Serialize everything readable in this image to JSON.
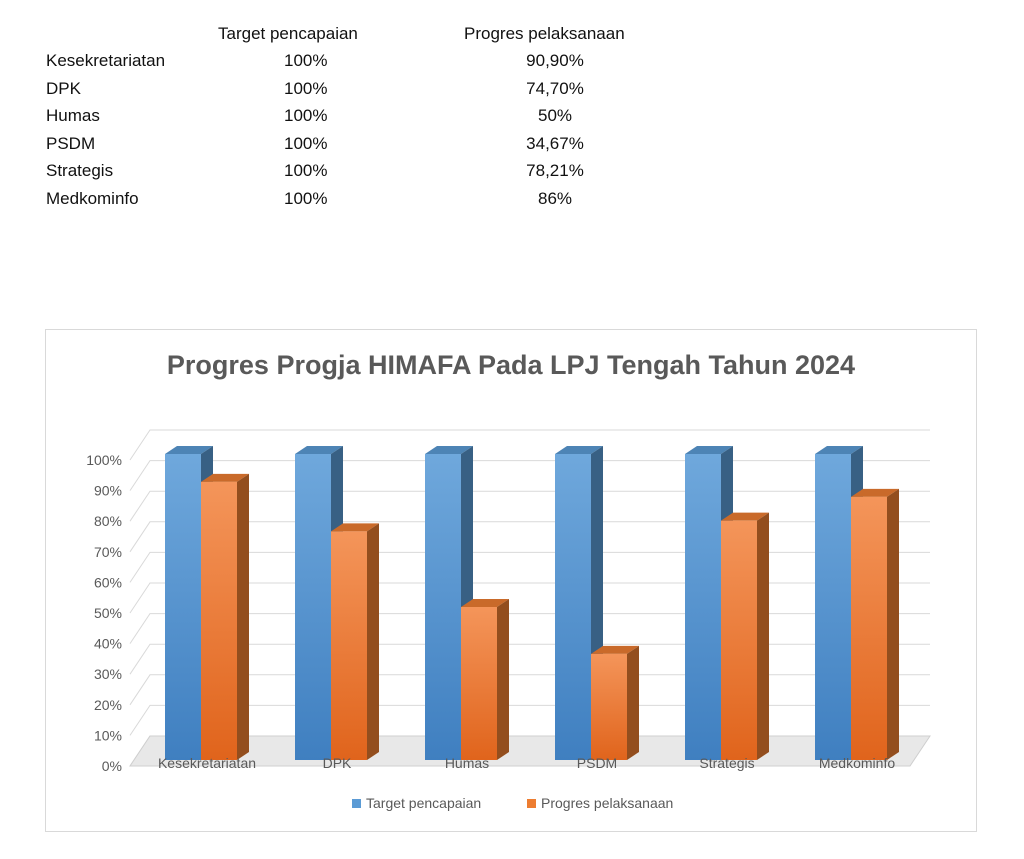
{
  "table": {
    "headers": [
      "",
      "Target pencapaian",
      "Progres pelaksanaan"
    ],
    "rows": [
      [
        "Kesekretariatan",
        "100%",
        "90,90%"
      ],
      [
        "DPK",
        "100%",
        "74,70%"
      ],
      [
        "Humas",
        "100%",
        "50%"
      ],
      [
        "PSDM",
        "100%",
        "34,67%"
      ],
      [
        "Strategis",
        "100%",
        "78,21%"
      ],
      [
        "Medkominfo",
        "100%",
        "86%"
      ]
    ]
  },
  "chart_data": {
    "type": "bar",
    "title": "Progres Progja HIMAFA Pada LPJ Tengah Tahun 2024",
    "categories": [
      "Kesekretariatan",
      "DPK",
      "Humas",
      "PSDM",
      "Strategis",
      "Medkominfo"
    ],
    "series": [
      {
        "name": "Target pencapaian",
        "values": [
          100,
          100,
          100,
          100,
          100,
          100
        ],
        "color": "#5b9bd5"
      },
      {
        "name": "Progres pelaksanaan",
        "values": [
          90.9,
          74.7,
          50,
          34.67,
          78.21,
          86
        ],
        "color": "#ed7d31"
      }
    ],
    "yticks": [
      "0%",
      "10%",
      "20%",
      "30%",
      "40%",
      "50%",
      "60%",
      "70%",
      "80%",
      "90%",
      "100%"
    ],
    "ylim": [
      0,
      100
    ],
    "grid": true,
    "legend_position": "bottom",
    "style": "3d-column"
  }
}
